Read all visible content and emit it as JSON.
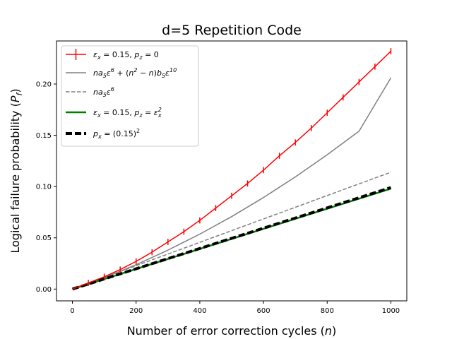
{
  "chart_data": {
    "type": "line",
    "title": "d=5 Repetition Code",
    "xlabel": "Number of error correction cycles (n)",
    "ylabel": "Logical failure probability (Pf)",
    "xlim": [
      -50,
      1050
    ],
    "ylim": [
      -0.0115,
      0.242
    ],
    "xticks": [
      0,
      200,
      400,
      600,
      800,
      1000
    ],
    "yticks": [
      0.0,
      0.05,
      0.1,
      0.15,
      0.2
    ],
    "xtick_labels": [
      "0",
      "200",
      "400",
      "600",
      "800",
      "1000"
    ],
    "ytick_labels": [
      "0.00",
      "0.05",
      "0.10",
      "0.15",
      "0.20"
    ],
    "legend_position": "upper-left",
    "series": [
      {
        "name": "εx = 0.15, pz = 0",
        "color": "#ff0000",
        "style": "solid-errorbars",
        "x": [
          0,
          50,
          100,
          150,
          200,
          250,
          300,
          350,
          400,
          450,
          500,
          550,
          600,
          650,
          700,
          750,
          800,
          850,
          900,
          950,
          1000
        ],
        "y": [
          0.0,
          0.006,
          0.012,
          0.019,
          0.027,
          0.036,
          0.046,
          0.056,
          0.067,
          0.079,
          0.091,
          0.103,
          0.116,
          0.13,
          0.143,
          0.157,
          0.172,
          0.187,
          0.202,
          0.217,
          0.232
        ]
      },
      {
        "name": "na5ε^6 + (n^2 − n)b5ε^10",
        "color": "#808080",
        "style": "solid",
        "x": [
          0,
          100,
          200,
          300,
          400,
          500,
          600,
          700,
          800,
          900,
          1000
        ],
        "y": [
          0.0,
          0.0111,
          0.0238,
          0.038,
          0.0536,
          0.0707,
          0.0893,
          0.1094,
          0.131,
          0.154,
          0.206
        ]
      },
      {
        "name": "na5ε^6",
        "color": "#808080",
        "style": "dashed",
        "x": [
          0,
          1000
        ],
        "y": [
          0.0,
          0.114
        ]
      },
      {
        "name": "εx = 0.15, pz = εx^2",
        "color": "#008000",
        "style": "solid-thick",
        "x": [
          0,
          1000
        ],
        "y": [
          0.0,
          0.098
        ]
      },
      {
        "name": "px = (0.15)^2",
        "color": "#000000",
        "style": "dashed-thick",
        "x": [
          0,
          1000
        ],
        "y": [
          0.0,
          0.099
        ]
      }
    ],
    "red_errorbar_halfwidth": 0.003
  }
}
